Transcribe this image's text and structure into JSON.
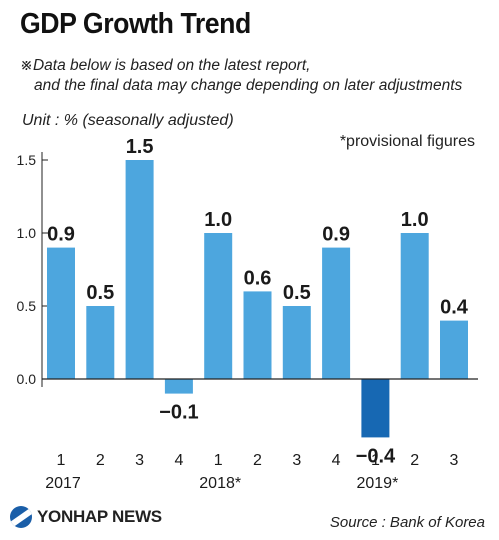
{
  "title": "GDP Growth Trend",
  "note_line1": "※Data below is based on the latest report,",
  "note_line2": "and the final data may change depending on later adjustments",
  "unit": "Unit : % (seasonally adjusted)",
  "provisional_note": "*provisional figures",
  "source": "Source : Bank of Korea",
  "logo_text": "YONHAP NEWS",
  "colors": {
    "bar": "#4da6de",
    "highlight": "#1768b3",
    "axis": "#222222"
  },
  "chart_data": {
    "type": "bar",
    "title": "GDP Growth Trend",
    "ylabel": "",
    "xlabel": "",
    "ylim": [
      -0.4,
      1.5
    ],
    "yticks": [
      "1.5",
      "1.0",
      "0.5",
      "0.0"
    ],
    "ytick_values": [
      1.5,
      1.0,
      0.5,
      0.0
    ],
    "grid": false,
    "categories": [
      "1",
      "2",
      "3",
      "4",
      "1",
      "2",
      "3",
      "4",
      "1",
      "2",
      "3"
    ],
    "year_groups": [
      {
        "label": "2017",
        "start": 0,
        "count": 4
      },
      {
        "label": "2018*",
        "start": 4,
        "count": 4
      },
      {
        "label": "2019*",
        "start": 8,
        "count": 3
      }
    ],
    "values": [
      0.9,
      0.5,
      1.5,
      -0.1,
      1.0,
      0.6,
      0.5,
      0.9,
      -0.4,
      1.0,
      0.4
    ],
    "value_labels": [
      "0.9",
      "0.5",
      "1.5",
      "−0.1",
      "1.0",
      "0.6",
      "0.5",
      "0.9",
      "−0.4",
      "1.0",
      "0.4"
    ],
    "highlight_index": 8
  }
}
